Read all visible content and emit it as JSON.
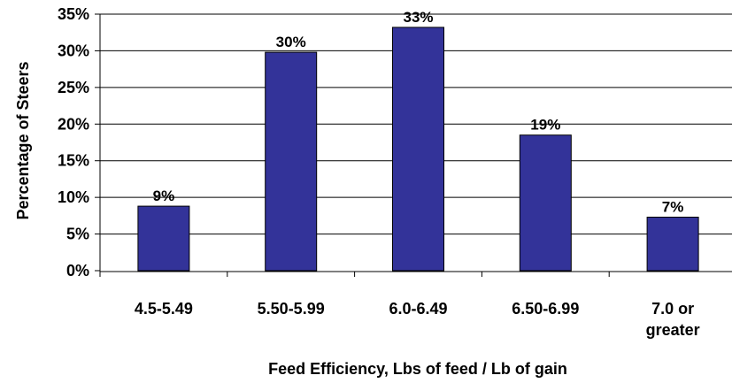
{
  "chart_data": {
    "type": "bar",
    "categories": [
      [
        "4.5-5.49"
      ],
      [
        "5.50-5.99"
      ],
      [
        "6.0-6.49"
      ],
      [
        "6.50-6.99"
      ],
      [
        "7.0 or",
        "greater"
      ]
    ],
    "values": [
      8.8,
      29.8,
      33.2,
      18.5,
      7.3
    ],
    "data_labels": [
      "9%",
      "30%",
      "33%",
      "19%",
      "7%"
    ],
    "y_ticks": [
      0,
      5,
      10,
      15,
      20,
      25,
      30,
      35
    ],
    "y_tick_labels": [
      "0%",
      "5%",
      "10%",
      "15%",
      "20%",
      "25%",
      "30%",
      "35%"
    ],
    "ylim": [
      0,
      35
    ],
    "xlabel": "Feed Efficiency, Lbs of feed / Lb of gain",
    "ylabel": "Percentage of Steers",
    "bar_color": "#333399",
    "grid": true,
    "legend": false
  }
}
